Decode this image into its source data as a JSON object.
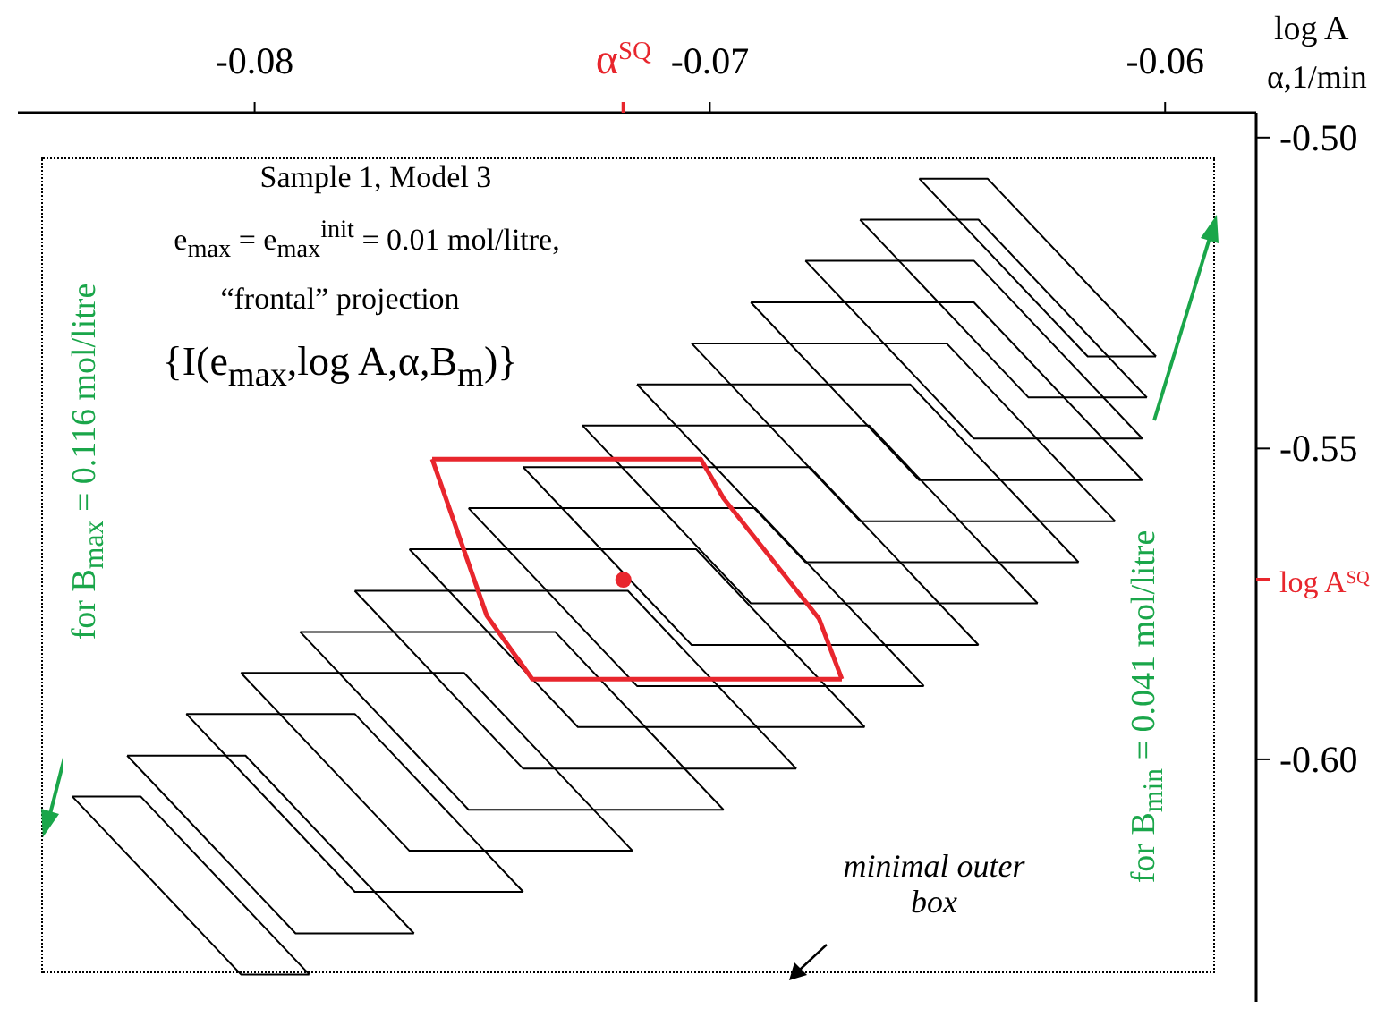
{
  "chart_data": {
    "type": "line",
    "xlabel": "α,1/min",
    "ylabel": "log A",
    "xlim": [
      -0.0852,
      -0.058
    ],
    "ylim": [
      -0.639,
      -0.496
    ],
    "xticks": [
      -0.08,
      {
        "value": -0.0719,
        "label": "α$^{SQ}$"
      },
      -0.07,
      -0.06
    ],
    "yticks": [
      {
        "value": -0.5,
        "label": "-0.50"
      },
      -0.55,
      {
        "value": -0.5711,
        "label": "log A$^{SQ}$"
      },
      {
        "value": -0.6,
        "label": "-0.60"
      }
    ],
    "marker": "none",
    "annotations": [
      "Sample 1, Model 3",
      "e$_{max}$ = e$_{max}$$^{init}$ = 0.01 mol/litre,",
      "“frontal” projection",
      "{I(e$_{max}$,log A,α,B$_{m}$)}",
      "for B$_{max}$ = 0.116 mol/litre",
      "for B$_{min}$ = 0.041 mol/litre",
      "minimal outer box"
    ],
    "series": [
      {
        "color": "#000000",
        "x": [
          -0.084,
          -0.0825,
          -0.0788
        ],
        "values": [
          -0.606,
          -0.606,
          -0.6346
        ]
      },
      {
        "color": "#000000",
        "x": [
          -0.084,
          -0.0803,
          -0.0788
        ],
        "values": [
          -0.606,
          -0.6346,
          -0.6346
        ]
      },
      {
        "color": "#000000",
        "x": [
          -0.0828,
          -0.0802,
          -0.0765
        ],
        "values": [
          -0.5994,
          -0.5994,
          -0.628
        ]
      },
      {
        "color": "#000000",
        "x": [
          -0.0828,
          -0.0791,
          -0.0765
        ],
        "values": [
          -0.5994,
          -0.628,
          -0.628
        ]
      },
      {
        "color": "#000000",
        "x": [
          -0.0815,
          -0.0778,
          -0.0741
        ],
        "values": [
          -0.5927,
          -0.5927,
          -0.6213
        ]
      },
      {
        "color": "#000000",
        "x": [
          -0.0815,
          -0.0778,
          -0.0741
        ],
        "values": [
          -0.5927,
          -0.6213,
          -0.6213
        ]
      },
      {
        "color": "#000000",
        "x": [
          -0.0803,
          -0.0754,
          -0.0717
        ],
        "values": [
          -0.5861,
          -0.5861,
          -0.6147
        ]
      },
      {
        "color": "#000000",
        "x": [
          -0.0803,
          -0.0766,
          -0.0717
        ],
        "values": [
          -0.5861,
          -0.6147,
          -0.6147
        ]
      },
      {
        "color": "#000000",
        "x": [
          -0.079,
          -0.0734,
          -0.0697
        ],
        "values": [
          -0.5795,
          -0.5795,
          -0.6081
        ]
      },
      {
        "color": "#000000",
        "x": [
          -0.079,
          -0.0753,
          -0.0697
        ],
        "values": [
          -0.5795,
          -0.6081,
          -0.6081
        ]
      },
      {
        "color": "#000000",
        "x": [
          -0.0778,
          -0.0718,
          -0.0681
        ],
        "values": [
          -0.5729,
          -0.5729,
          -0.6015
        ]
      },
      {
        "color": "#000000",
        "x": [
          -0.0778,
          -0.0741,
          -0.0681
        ],
        "values": [
          -0.5729,
          -0.6015,
          -0.6015
        ]
      },
      {
        "color": "#000000",
        "x": [
          -0.0766,
          -0.0703,
          -0.0666
        ],
        "values": [
          -0.5662,
          -0.5662,
          -0.5948
        ]
      },
      {
        "color": "#000000",
        "x": [
          -0.0766,
          -0.0729,
          -0.0666
        ],
        "values": [
          -0.5662,
          -0.5948,
          -0.5948
        ]
      },
      {
        "color": "#000000",
        "x": [
          -0.0753,
          -0.069,
          -0.0653
        ],
        "values": [
          -0.5596,
          -0.5596,
          -0.5882
        ]
      },
      {
        "color": "#000000",
        "x": [
          -0.0753,
          -0.0716,
          -0.0653
        ],
        "values": [
          -0.5596,
          -0.5882,
          -0.5882
        ]
      },
      {
        "color": "#000000",
        "x": [
          -0.0741,
          -0.0678,
          -0.0641
        ],
        "values": [
          -0.553,
          -0.553,
          -0.5816
        ]
      },
      {
        "color": "#000000",
        "x": [
          -0.0741,
          -0.0704,
          -0.0641
        ],
        "values": [
          -0.553,
          -0.5816,
          -0.5816
        ]
      },
      {
        "color": "#000000",
        "x": [
          -0.0728,
          -0.0665,
          -0.0628
        ],
        "values": [
          -0.5463,
          -0.5463,
          -0.5749
        ]
      },
      {
        "color": "#000000",
        "x": [
          -0.0728,
          -0.0691,
          -0.0628
        ],
        "values": [
          -0.5463,
          -0.5749,
          -0.5749
        ]
      },
      {
        "color": "#000000",
        "x": [
          -0.0716,
          -0.0656,
          -0.0619
        ],
        "values": [
          -0.5397,
          -0.5397,
          -0.5683
        ]
      },
      {
        "color": "#000000",
        "x": [
          -0.0716,
          -0.0679,
          -0.0619
        ],
        "values": [
          -0.5397,
          -0.5683,
          -0.5683
        ]
      },
      {
        "color": "#000000",
        "x": [
          -0.0704,
          -0.0648,
          -0.0611
        ],
        "values": [
          -0.5331,
          -0.5331,
          -0.5617
        ]
      },
      {
        "color": "#000000",
        "x": [
          -0.0704,
          -0.0667,
          -0.0611
        ],
        "values": [
          -0.5331,
          -0.5617,
          -0.5617
        ]
      },
      {
        "color": "#000000",
        "x": [
          -0.0691,
          -0.0642,
          -0.0605
        ],
        "values": [
          -0.5265,
          -0.5265,
          -0.5551
        ]
      },
      {
        "color": "#000000",
        "x": [
          -0.0691,
          -0.0654,
          -0.0605
        ],
        "values": [
          -0.5265,
          -0.5551,
          -0.5551
        ]
      },
      {
        "color": "#000000",
        "x": [
          -0.0679,
          -0.0642,
          -0.0605
        ],
        "values": [
          -0.5198,
          -0.5198,
          -0.5484
        ]
      },
      {
        "color": "#000000",
        "x": [
          -0.0679,
          -0.0642,
          -0.0605
        ],
        "values": [
          -0.5198,
          -0.5484,
          -0.5484
        ]
      },
      {
        "color": "#000000",
        "x": [
          -0.0667,
          -0.0641,
          -0.0604
        ],
        "values": [
          -0.5132,
          -0.5132,
          -0.5418
        ]
      },
      {
        "color": "#000000",
        "x": [
          -0.0667,
          -0.063,
          -0.0604
        ],
        "values": [
          -0.5132,
          -0.5418,
          -0.5418
        ]
      },
      {
        "color": "#000000",
        "x": [
          -0.0654,
          -0.0639,
          -0.0602
        ],
        "values": [
          -0.5066,
          -0.5066,
          -0.5352
        ]
      },
      {
        "color": "#000000",
        "x": [
          -0.0654,
          -0.0617,
          -0.0602
        ],
        "values": [
          -0.5066,
          -0.5352,
          -0.5352
        ]
      },
      {
        "color": "#e8262d",
        "x": [
          -0.0761,
          -0.0702,
          -0.0697,
          -0.0676,
          -0.0671
        ],
        "values": [
          -0.5517,
          -0.5517,
          -0.558,
          -0.5774,
          -0.5871
        ]
      },
      {
        "color": "#e8262d",
        "x": [
          -0.0761,
          -0.0749,
          -0.0739,
          -0.0671
        ],
        "values": [
          -0.5517,
          -0.5769,
          -0.5871,
          -0.5871
        ]
      },
      {
        "type": "scatter",
        "marker": "circle",
        "color": "#e8262d",
        "x": [
          -0.0719
        ],
        "values": [
          -0.5711
        ]
      }
    ]
  }
}
